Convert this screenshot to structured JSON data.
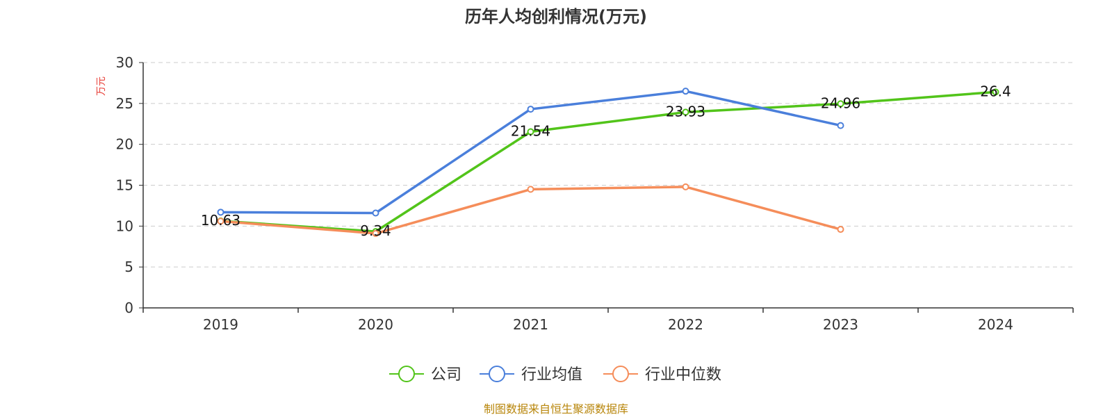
{
  "chart_data": {
    "type": "line",
    "title": "历年人均创利情况(万元)",
    "ylabel": "万元",
    "xlabel": "",
    "categories": [
      "2019",
      "2020",
      "2021",
      "2022",
      "2023",
      "2024"
    ],
    "ylim": [
      0,
      30
    ],
    "yticks": [
      "0",
      "5",
      "10",
      "15",
      "20",
      "25",
      "30"
    ],
    "grid": true,
    "legend_position": "bottom",
    "series": [
      {
        "name": "公司",
        "color": "#52c41a",
        "values": [
          10.63,
          9.34,
          21.54,
          23.93,
          24.96,
          26.4
        ],
        "labels": [
          "10.63",
          "9.34",
          "21.54",
          "23.93",
          "24.96",
          "26.4"
        ]
      },
      {
        "name": "行业均值",
        "color": "#4a7fdb",
        "values": [
          11.7,
          11.6,
          24.3,
          26.5,
          22.3,
          null
        ]
      },
      {
        "name": "行业中位数",
        "color": "#f58d5a",
        "values": [
          10.6,
          9.1,
          14.5,
          14.8,
          9.6,
          null
        ]
      }
    ]
  },
  "source": "制图数据来自恒生聚源数据库"
}
